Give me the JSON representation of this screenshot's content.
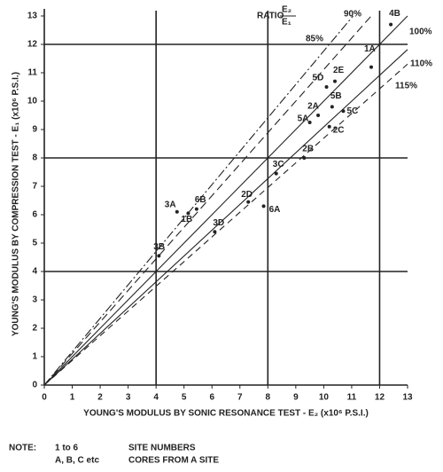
{
  "chart_data": {
    "type": "scatter",
    "xlabel": "YOUNG'S MODULUS BY SONIC RESONANCE TEST - E₂ (x10⁶ P.S.I.)",
    "ylabel": "YOUNG'S MODULUS BY COMPRESSION TEST - E₁ (x10⁶ P.S.I.)",
    "xlim": [
      0,
      13
    ],
    "ylim": [
      0,
      13
    ],
    "xticks": [
      0,
      1,
      2,
      3,
      4,
      5,
      6,
      7,
      8,
      9,
      10,
      11,
      12,
      13
    ],
    "yticks": [
      0,
      1,
      2,
      3,
      4,
      5,
      6,
      7,
      8,
      9,
      10,
      11,
      12,
      13
    ],
    "gridlines": [
      4,
      8,
      12
    ],
    "color": "#222",
    "point_labels": [
      "1A",
      "4B",
      "5D",
      "2E",
      "5B",
      "2A",
      "5C",
      "5A",
      "2C",
      "2B",
      "3C",
      "2D",
      "6A",
      "3A",
      "6B",
      "1B",
      "3D",
      "3B"
    ],
    "x": [
      11.7,
      12.4,
      10.1,
      10.4,
      10.3,
      9.8,
      10.7,
      9.5,
      10.2,
      9.3,
      8.3,
      7.3,
      7.85,
      4.75,
      5.45,
      5.15,
      6.1,
      4.1
    ],
    "values": [
      11.2,
      12.7,
      10.5,
      10.7,
      9.8,
      9.5,
      9.65,
      9.25,
      9.1,
      8.0,
      7.45,
      6.45,
      6.3,
      6.1,
      6.2,
      6.05,
      5.4,
      4.55
    ],
    "ratio_title": "RATIO",
    "ratio_numerator": "E₂",
    "ratio_denominator": "E₁",
    "ratio_lines": [
      {
        "value": 85,
        "label": "85%"
      },
      {
        "value": 90,
        "label": "90%"
      },
      {
        "value": 100,
        "label": "100%"
      },
      {
        "value": 110,
        "label": "110%"
      },
      {
        "value": 115,
        "label": "115%"
      }
    ],
    "note": {
      "heading": "NOTE:",
      "rows": [
        [
          "1 to 6",
          "SITE NUMBERS"
        ],
        [
          "A, B, C etc",
          "CORES FROM A SITE"
        ]
      ]
    }
  }
}
